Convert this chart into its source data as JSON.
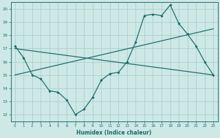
{
  "background_color": "#cde8e5",
  "grid_color": "#aacfcc",
  "line_color": "#1a6b6b",
  "xlabel": "Humidex (Indice chaleur)",
  "xlim": [
    -0.5,
    23.5
  ],
  "ylim": [
    11.5,
    20.5
  ],
  "yticks": [
    12,
    13,
    14,
    15,
    16,
    17,
    18,
    19,
    20
  ],
  "xticks": [
    0,
    1,
    2,
    3,
    4,
    5,
    6,
    7,
    8,
    9,
    10,
    11,
    12,
    13,
    14,
    15,
    16,
    17,
    18,
    19,
    20,
    21,
    22,
    23
  ],
  "line1_x": [
    0,
    1,
    2,
    3,
    4,
    5,
    6,
    7,
    8,
    9,
    10,
    11,
    12,
    13,
    14,
    15,
    16,
    17,
    18,
    19,
    20,
    21,
    22,
    23
  ],
  "line1_y": [
    17.2,
    16.3,
    15.0,
    14.7,
    13.8,
    13.7,
    13.1,
    12.0,
    12.4,
    13.3,
    14.6,
    15.1,
    15.2,
    16.0,
    17.5,
    19.5,
    19.6,
    19.5,
    20.3,
    18.9,
    18.1,
    17.2,
    16.0,
    15.0
  ],
  "line2_x": [
    0,
    23
  ],
  "line2_y": [
    17.0,
    15.0
  ],
  "line3_x": [
    0,
    23
  ],
  "line3_y": [
    15.0,
    18.5
  ]
}
